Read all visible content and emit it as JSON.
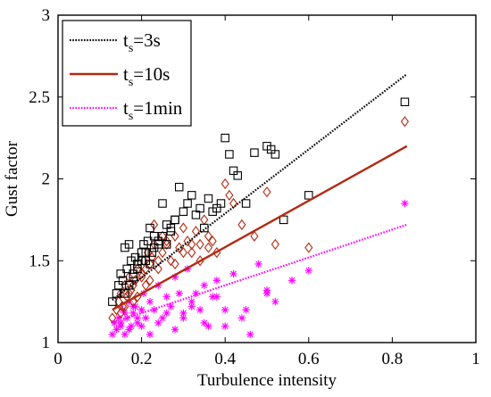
{
  "chart_data": {
    "type": "scatter",
    "xlabel": "Turbulence intensity",
    "ylabel": "Gust factor",
    "xlim": [
      0,
      1
    ],
    "ylim": [
      1,
      3
    ],
    "xticks": [
      0,
      0.2,
      0.4,
      0.6,
      0.8,
      1
    ],
    "yticks": [
      1,
      1.5,
      2,
      2.5,
      3
    ],
    "xtick_labels": [
      "0",
      "0.2",
      "0.4",
      "0.6",
      "0.8",
      "1"
    ],
    "ytick_labels": [
      "1",
      "1.5",
      "2",
      "2.5",
      "3"
    ],
    "grid": false,
    "legend_position": "top-left",
    "series": [
      {
        "name": "t_s=3s",
        "label_main": "t",
        "label_sub": "s",
        "label_rest": "=3s",
        "marker": "square",
        "color": "#000000",
        "fit": {
          "x": [
            0.13,
            0.835
          ],
          "y": [
            1.26,
            2.64
          ],
          "style": "dotted"
        },
        "x": [
          0.13,
          0.14,
          0.145,
          0.15,
          0.155,
          0.16,
          0.165,
          0.17,
          0.175,
          0.18,
          0.185,
          0.19,
          0.2,
          0.205,
          0.21,
          0.215,
          0.22,
          0.225,
          0.23,
          0.24,
          0.25,
          0.26,
          0.27,
          0.28,
          0.29,
          0.3,
          0.31,
          0.32,
          0.33,
          0.34,
          0.35,
          0.36,
          0.37,
          0.38,
          0.39,
          0.4,
          0.41,
          0.42,
          0.43,
          0.45,
          0.47,
          0.5,
          0.51,
          0.52,
          0.54,
          0.6,
          0.83,
          0.16,
          0.17,
          0.18,
          0.19,
          0.2,
          0.21,
          0.22,
          0.23,
          0.24,
          0.25,
          0.26,
          0.27,
          0.28
        ],
        "y": [
          1.25,
          1.3,
          1.35,
          1.42,
          1.38,
          1.58,
          1.45,
          1.6,
          1.5,
          1.4,
          1.52,
          1.48,
          1.55,
          1.6,
          1.5,
          1.62,
          1.7,
          1.55,
          1.65,
          1.6,
          1.85,
          1.72,
          1.68,
          1.75,
          1.95,
          1.8,
          1.85,
          1.9,
          1.78,
          1.82,
          1.7,
          1.88,
          1.8,
          1.82,
          1.85,
          2.25,
          2.15,
          2.05,
          2.02,
          1.85,
          2.16,
          2.2,
          2.18,
          2.15,
          1.75,
          1.9,
          2.47,
          1.3,
          1.35,
          1.42,
          1.45,
          1.5,
          1.55,
          1.48,
          1.58,
          1.62,
          1.65,
          1.6,
          1.7,
          1.75
        ]
      },
      {
        "name": "t_s=10s",
        "label_main": "t",
        "label_sub": "s",
        "label_rest": "=10s",
        "marker": "diamond",
        "color": "#b22a12",
        "fit": {
          "x": [
            0.13,
            0.835
          ],
          "y": [
            1.2,
            2.2
          ],
          "style": "solid"
        },
        "x": [
          0.13,
          0.14,
          0.145,
          0.15,
          0.155,
          0.16,
          0.165,
          0.17,
          0.175,
          0.18,
          0.185,
          0.19,
          0.2,
          0.205,
          0.21,
          0.215,
          0.22,
          0.225,
          0.23,
          0.24,
          0.25,
          0.26,
          0.27,
          0.28,
          0.29,
          0.3,
          0.31,
          0.32,
          0.33,
          0.34,
          0.35,
          0.36,
          0.37,
          0.38,
          0.4,
          0.41,
          0.42,
          0.44,
          0.47,
          0.5,
          0.52,
          0.6,
          0.83,
          0.15,
          0.16,
          0.17,
          0.18,
          0.19,
          0.2,
          0.21,
          0.22,
          0.23,
          0.24,
          0.26,
          0.28,
          0.3,
          0.32,
          0.34,
          0.36,
          0.25
        ],
        "y": [
          1.15,
          1.2,
          1.25,
          1.3,
          1.22,
          1.35,
          1.28,
          1.4,
          1.32,
          1.25,
          1.38,
          1.45,
          1.42,
          1.5,
          1.35,
          1.55,
          1.48,
          1.52,
          1.6,
          1.45,
          1.55,
          1.6,
          1.5,
          1.65,
          1.58,
          1.7,
          1.62,
          1.55,
          1.68,
          1.6,
          1.75,
          1.58,
          1.62,
          1.55,
          1.97,
          1.9,
          1.85,
          1.72,
          1.65,
          1.92,
          1.6,
          1.58,
          2.35,
          1.18,
          1.22,
          1.3,
          1.35,
          1.28,
          1.4,
          1.45,
          1.38,
          1.72,
          1.5,
          1.62,
          1.48,
          1.55,
          1.6,
          1.5,
          1.65,
          1.65
        ]
      },
      {
        "name": "t_s=1min",
        "label_main": "t",
        "label_sub": "s",
        "label_rest": "=1min",
        "marker": "asterisk",
        "color": "#ff00ff",
        "fit": {
          "x": [
            0.13,
            0.835
          ],
          "y": [
            1.12,
            1.72
          ],
          "style": "dotted"
        },
        "x": [
          0.13,
          0.135,
          0.14,
          0.145,
          0.15,
          0.155,
          0.16,
          0.165,
          0.17,
          0.175,
          0.18,
          0.185,
          0.19,
          0.2,
          0.205,
          0.21,
          0.22,
          0.23,
          0.24,
          0.25,
          0.26,
          0.27,
          0.28,
          0.29,
          0.3,
          0.31,
          0.32,
          0.33,
          0.34,
          0.35,
          0.36,
          0.37,
          0.38,
          0.4,
          0.42,
          0.44,
          0.46,
          0.48,
          0.5,
          0.52,
          0.56,
          0.6,
          0.83,
          0.15,
          0.16,
          0.17,
          0.18,
          0.19,
          0.2,
          0.22,
          0.24,
          0.26,
          0.28,
          0.3,
          0.32,
          0.35,
          0.38,
          0.4,
          0.45,
          0.5
        ],
        "y": [
          1.05,
          1.12,
          1.08,
          1.15,
          1.1,
          1.2,
          1.05,
          1.15,
          1.25,
          1.1,
          1.18,
          1.22,
          1.12,
          1.2,
          1.3,
          1.15,
          1.25,
          1.2,
          1.35,
          1.15,
          1.28,
          1.22,
          1.4,
          1.3,
          1.18,
          1.45,
          1.25,
          1.3,
          1.2,
          1.35,
          1.1,
          1.28,
          1.38,
          1.2,
          1.42,
          1.15,
          1.05,
          1.48,
          1.3,
          1.25,
          1.38,
          1.44,
          1.85,
          1.12,
          1.18,
          1.08,
          1.22,
          1.15,
          1.1,
          1.05,
          1.12,
          1.18,
          1.08,
          1.15,
          1.22,
          1.12,
          1.28,
          1.1,
          1.2,
          1.32
        ]
      }
    ]
  }
}
